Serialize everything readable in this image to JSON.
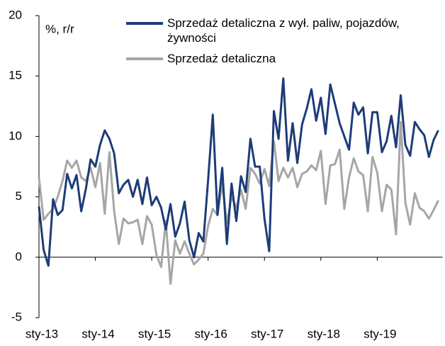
{
  "chart_data": {
    "type": "line",
    "y_label": "%, r/r",
    "categories": [
      "sty-13",
      null,
      null,
      null,
      null,
      null,
      null,
      null,
      null,
      null,
      null,
      null,
      "sty-14",
      null,
      null,
      null,
      null,
      null,
      null,
      null,
      null,
      null,
      null,
      null,
      "sty-15",
      null,
      null,
      null,
      null,
      null,
      null,
      null,
      null,
      null,
      null,
      null,
      "sty-16",
      null,
      null,
      null,
      null,
      null,
      null,
      null,
      null,
      null,
      null,
      null,
      "sty-17",
      null,
      null,
      null,
      null,
      null,
      null,
      null,
      null,
      null,
      null,
      null,
      "sty-18",
      null,
      null,
      null,
      null,
      null,
      null,
      null,
      null,
      null,
      null,
      null,
      "sty-19",
      null,
      null,
      null,
      null,
      null,
      null,
      null,
      null,
      null,
      null,
      null,
      null,
      null
    ],
    "series": [
      {
        "name": "Sprzedaż detaliczna z wył. paliw, pojazdów, żywności",
        "color": "#1d3c78",
        "values": [
          4.2,
          0.6,
          -0.7,
          4.8,
          3.5,
          3.9,
          6.9,
          5.7,
          6.8,
          3.8,
          5.7,
          8.1,
          7.5,
          9.3,
          10.5,
          9.8,
          8.6,
          5.3,
          6.0,
          6.4,
          5.0,
          6.4,
          4.4,
          6.6,
          4.3,
          5.0,
          4.1,
          2.3,
          4.4,
          1.7,
          2.8,
          4.6,
          1.4,
          0.0,
          2.0,
          1.3,
          6.4,
          11.8,
          3.5,
          7.4,
          1.1,
          6.1,
          3.0,
          6.7,
          5.4,
          9.8,
          7.5,
          7.5,
          3.2,
          0.5,
          12.1,
          9.8,
          14.8,
          8.0,
          11.1,
          7.8,
          11.0,
          12.3,
          13.9,
          11.3,
          13.2,
          10.2,
          14.3,
          12.7,
          11.1,
          10.0,
          8.9,
          12.8,
          11.8,
          12.4,
          8.6,
          12.0,
          12.0,
          8.7,
          9.6,
          11.7,
          9.1,
          13.4,
          9.3,
          8.4,
          11.2,
          10.6,
          10.1,
          8.3,
          9.7,
          10.5
        ]
      },
      {
        "name": "Sprzedaż detaliczna",
        "color": "#a6a6a6",
        "values": [
          6.6,
          3.1,
          3.6,
          4.0,
          5.0,
          6.3,
          8.0,
          7.4,
          8.0,
          6.6,
          6.3,
          7.4,
          5.8,
          7.8,
          3.6,
          8.7,
          3.8,
          1.1,
          3.2,
          2.8,
          2.9,
          3.1,
          1.1,
          3.4,
          2.7,
          0.2,
          -0.8,
          3.0,
          -2.2,
          1.4,
          0.3,
          1.3,
          0.3,
          -0.6,
          -0.2,
          0.3,
          2.6,
          4.0,
          3.5,
          6.1,
          2.8,
          5.0,
          4.1,
          5.6,
          4.0,
          7.4,
          6.9,
          6.1,
          7.3,
          5.9,
          9.6,
          6.3,
          7.4,
          6.6,
          7.4,
          5.8,
          6.9,
          7.1,
          7.6,
          7.2,
          8.8,
          4.4,
          7.6,
          7.7,
          8.9,
          4.0,
          6.6,
          8.2,
          7.1,
          6.8,
          3.8,
          8.3,
          7.0,
          3.8,
          6.0,
          5.6,
          1.9,
          11.2,
          4.5,
          2.7,
          5.3,
          4.1,
          3.8,
          3.2,
          3.9,
          4.7
        ]
      }
    ],
    "ylim": [
      -5,
      20
    ],
    "yticks": [
      -5,
      0,
      5,
      10,
      15,
      20
    ],
    "grid": false
  }
}
